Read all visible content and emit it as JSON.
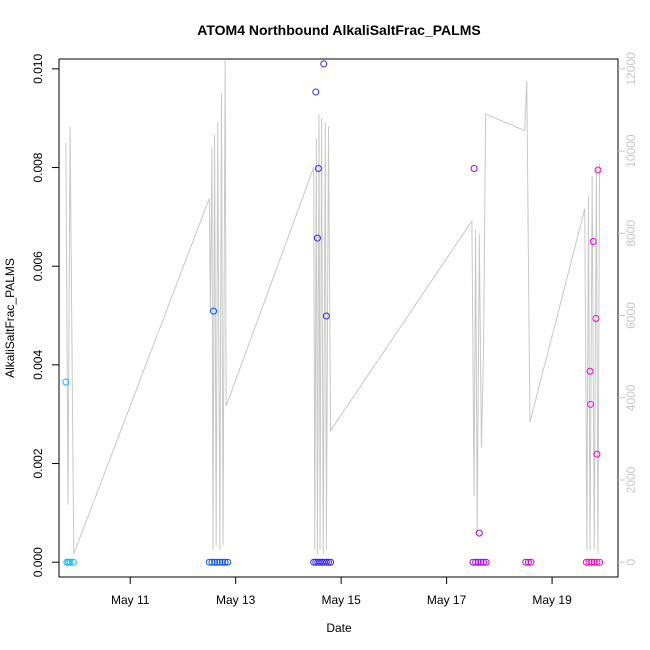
{
  "chart_data": {
    "type": "scatter",
    "title": "ATOM4 Northbound AlkaliSaltFrac_PALMS",
    "xlabel": "Date",
    "ylabel": "AlkaliSaltFrac_PALMS",
    "x_ticks": [
      "May 11",
      "May 13",
      "May 15",
      "May 17",
      "May 19"
    ],
    "y_ticks": [
      "0.000",
      "0.002",
      "0.004",
      "0.006",
      "0.008",
      "0.010"
    ],
    "y2_ticks": [
      "0",
      "2000",
      "4000",
      "6000",
      "8000",
      "10000",
      "12000"
    ],
    "xlim": [
      9.65,
      20.25
    ],
    "ylim": [
      -0.0003,
      0.0102
    ],
    "y2lim": [
      -360,
      12240
    ],
    "grid": false,
    "series": [
      {
        "kind": "points",
        "marker": "open-circle",
        "color_gradient": [
          "#00bfff",
          "#0040ff",
          "#7a00ff",
          "#ff00c8"
        ],
        "points": [
          [
            9.78,
            0.00365
          ],
          [
            9.8,
            0.0
          ],
          [
            9.83,
            0.0
          ],
          [
            9.86,
            0.0
          ],
          [
            9.92,
            0.0
          ],
          [
            12.58,
            0.00509
          ],
          [
            12.5,
            0.0
          ],
          [
            12.55,
            0.0
          ],
          [
            12.6,
            0.0
          ],
          [
            12.65,
            0.0
          ],
          [
            12.7,
            0.0
          ],
          [
            12.75,
            0.0
          ],
          [
            12.8,
            0.0
          ],
          [
            12.85,
            0.0
          ],
          [
            14.52,
            0.00953
          ],
          [
            14.55,
            0.00657
          ],
          [
            14.57,
            0.00798
          ],
          [
            14.67,
            0.0101
          ],
          [
            14.72,
            0.00499
          ],
          [
            14.48,
            0.0
          ],
          [
            14.52,
            0.0
          ],
          [
            14.56,
            0.0
          ],
          [
            14.6,
            0.0
          ],
          [
            14.64,
            0.0
          ],
          [
            14.68,
            0.0
          ],
          [
            14.72,
            0.0
          ],
          [
            14.76,
            0.0
          ],
          [
            14.8,
            0.0
          ],
          [
            17.52,
            0.00798
          ],
          [
            17.62,
            0.00059
          ],
          [
            17.5,
            0.0
          ],
          [
            17.55,
            0.0
          ],
          [
            17.6,
            0.0
          ],
          [
            17.65,
            0.0
          ],
          [
            17.7,
            0.0
          ],
          [
            17.75,
            0.0
          ],
          [
            18.5,
            0.0
          ],
          [
            18.55,
            0.0
          ],
          [
            18.6,
            0.0
          ],
          [
            19.72,
            0.00387
          ],
          [
            19.73,
            0.0032
          ],
          [
            19.78,
            0.0065
          ],
          [
            19.83,
            0.00494
          ],
          [
            19.85,
            0.00219
          ],
          [
            19.87,
            0.00795
          ],
          [
            19.65,
            0.0
          ],
          [
            19.7,
            0.0
          ],
          [
            19.75,
            0.0
          ],
          [
            19.8,
            0.0
          ],
          [
            19.85,
            0.0
          ],
          [
            19.9,
            0.0
          ]
        ]
      },
      {
        "kind": "line",
        "color": "#c8c8c8",
        "axis": "right",
        "points": [
          [
            9.78,
            10200
          ],
          [
            9.82,
            1400
          ],
          [
            9.86,
            10600
          ],
          [
            9.93,
            200
          ],
          [
            12.5,
            8850
          ],
          [
            12.52,
            6100
          ],
          [
            12.55,
            10100
          ],
          [
            12.57,
            300
          ],
          [
            12.6,
            10400
          ],
          [
            12.63,
            400
          ],
          [
            12.66,
            10700
          ],
          [
            12.7,
            300
          ],
          [
            12.73,
            11400
          ],
          [
            12.76,
            400
          ],
          [
            12.8,
            12200
          ],
          [
            12.82,
            3800
          ],
          [
            14.48,
            9600
          ],
          [
            14.5,
            300
          ],
          [
            14.53,
            10300
          ],
          [
            14.55,
            200
          ],
          [
            14.58,
            10900
          ],
          [
            14.6,
            300
          ],
          [
            14.63,
            10800
          ],
          [
            14.66,
            200
          ],
          [
            14.7,
            10700
          ],
          [
            14.72,
            300
          ],
          [
            14.76,
            10600
          ],
          [
            14.8,
            3200
          ],
          [
            17.48,
            8300
          ],
          [
            17.52,
            1600
          ],
          [
            17.55,
            8100
          ],
          [
            17.58,
            700
          ],
          [
            17.62,
            8000
          ],
          [
            17.66,
            2800
          ],
          [
            17.7,
            5100
          ],
          [
            17.74,
            10900
          ],
          [
            18.48,
            10500
          ],
          [
            18.52,
            11700
          ],
          [
            18.58,
            3400
          ],
          [
            19.62,
            8600
          ],
          [
            19.66,
            300
          ],
          [
            19.69,
            8900
          ],
          [
            19.72,
            300
          ],
          [
            19.76,
            9400
          ],
          [
            19.8,
            300
          ],
          [
            19.84,
            9600
          ],
          [
            19.87,
            200
          ],
          [
            19.9,
            9700
          ]
        ]
      }
    ]
  }
}
